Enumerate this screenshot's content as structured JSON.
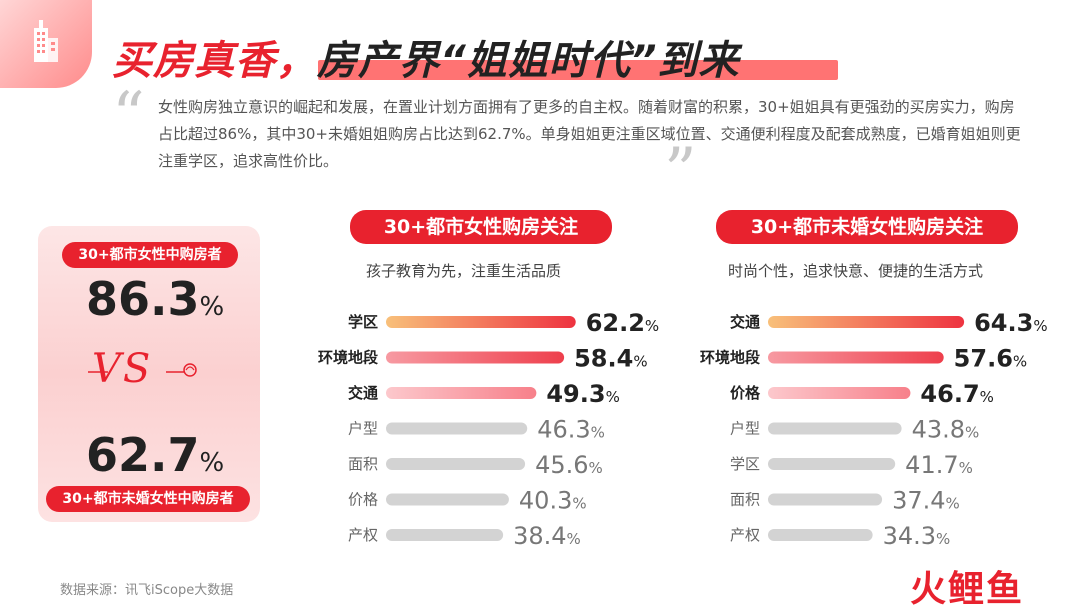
{
  "header": {
    "title_part1": "买房真香，",
    "title_part2": "房产界“姐姐时代”到来"
  },
  "intro": "女性购房独立意识的崛起和发展，在置业计划方面拥有了更多的自主权。随着财富的积累，30+姐姐具有更强劲的买房实力，购房占比超过86%，其中30+未婚姐姐购房占比达到62.7%。单身姐姐更注重区域位置、交通便利程度及配套成熟度，已婚育姐姐则更注重学区，追求高性价比。",
  "left_card": {
    "top_label": "30+都市女性中购房者",
    "top_value": "86.3",
    "vs": "VS",
    "bottom_value": "62.7",
    "bottom_label": "30+都市未婚女性中购房者",
    "unit": "%"
  },
  "colors": {
    "accent": "#e8222e",
    "bar_strong": "#ee3340",
    "bar_mid": "#f7707a",
    "bar_light": "#fba5ab",
    "bar_gray": "#d3d3d3"
  },
  "source": "数据来源：讯飞iScope大数据",
  "logo": "火鲤鱼",
  "chart_data": [
    {
      "type": "bar",
      "title": "30+都市女性购房关注",
      "subtitle": "孩子教育为先，注重生活品质",
      "categories": [
        "学区",
        "环境地段",
        "交通",
        "户型",
        "面积",
        "价格",
        "产权"
      ],
      "values": [
        62.2,
        58.4,
        49.3,
        46.3,
        45.6,
        40.3,
        38.4
      ],
      "unit": "%"
    },
    {
      "type": "bar",
      "title": "30+都市未婚女性购房关注",
      "subtitle": "时尚个性，追求快意、便捷的生活方式",
      "categories": [
        "交通",
        "环境地段",
        "价格",
        "户型",
        "学区",
        "面积",
        "产权"
      ],
      "values": [
        64.3,
        57.6,
        46.7,
        43.8,
        41.7,
        37.4,
        34.3
      ],
      "unit": "%"
    }
  ]
}
